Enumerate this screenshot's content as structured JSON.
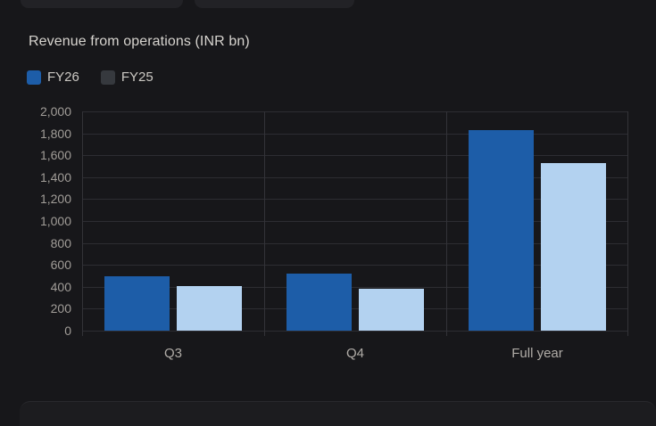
{
  "page": {
    "background": "#17171a",
    "top_tabs_count": 2
  },
  "header": {
    "title": "Revenue from operations (INR bn)"
  },
  "legend": {
    "items": [
      {
        "label": "FY26",
        "swatch_color": "#1d5da8"
      },
      {
        "label": "FY25",
        "swatch_color": "#36393e"
      }
    ]
  },
  "chart_data": {
    "type": "bar",
    "title": "Revenue from operations (INR bn)",
    "categories": [
      "Q3",
      "Q4",
      "Full year"
    ],
    "series": [
      {
        "name": "FY26",
        "color": "#1d5da8",
        "values": [
          495,
          520,
          1830
        ]
      },
      {
        "name": "FY25",
        "color": "#b3d2f0",
        "values": [
          410,
          380,
          1525
        ]
      }
    ],
    "ylabel": "",
    "xlabel": "",
    "ylim": [
      0,
      2000
    ],
    "ytick_step": 200,
    "grid": true,
    "legend_position": "top-left",
    "background": "#17171a"
  }
}
